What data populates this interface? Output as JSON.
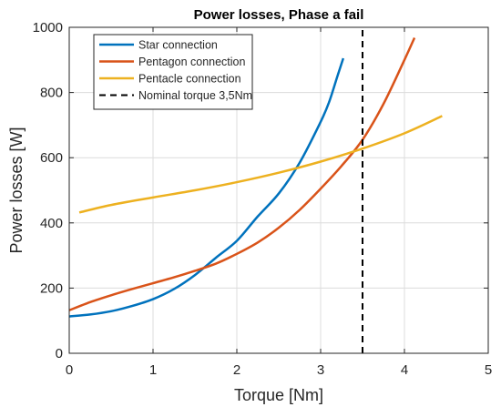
{
  "chart_data": {
    "type": "line",
    "title": "Power losses, Phase a fail",
    "xlabel": "Torque [Nm]",
    "ylabel": "Power losses [W]",
    "xlim": [
      0,
      5
    ],
    "ylim": [
      0,
      1000
    ],
    "xticks": [
      "0",
      "1",
      "2",
      "3",
      "4",
      "5"
    ],
    "yticks": [
      "0",
      "200",
      "400",
      "600",
      "800",
      "1000"
    ],
    "grid": true,
    "legend_position": "top-left",
    "series": [
      {
        "name": "Star connection",
        "color": "#0072BD",
        "style": "solid",
        "x": [
          0.0,
          0.25,
          0.5,
          0.75,
          1.0,
          1.25,
          1.5,
          1.75,
          2.0,
          2.25,
          2.5,
          2.75,
          3.0,
          3.1,
          3.2,
          3.27
        ],
        "y": [
          113,
          119,
          129,
          145,
          166,
          197,
          240,
          293,
          345,
          420,
          490,
          585,
          710,
          770,
          850,
          905
        ]
      },
      {
        "name": "Pentagon connection",
        "color": "#D95319",
        "style": "solid",
        "x": [
          0.0,
          0.25,
          0.5,
          0.75,
          1.0,
          1.25,
          1.5,
          1.75,
          2.0,
          2.25,
          2.5,
          2.75,
          3.0,
          3.25,
          3.5,
          3.75,
          4.0,
          4.12
        ],
        "y": [
          132,
          157,
          178,
          197,
          215,
          233,
          253,
          275,
          305,
          340,
          385,
          440,
          505,
          575,
          655,
          765,
          900,
          968
        ]
      },
      {
        "name": "Pentacle connection",
        "color": "#EDB120",
        "style": "solid",
        "x": [
          0.12,
          0.5,
          1.0,
          1.5,
          2.0,
          2.5,
          3.0,
          3.5,
          4.0,
          4.45
        ],
        "y": [
          432,
          455,
          478,
          500,
          525,
          554,
          588,
          628,
          675,
          728
        ]
      },
      {
        "name": "Nominal torque 3,5Nm",
        "color": "#000000",
        "style": "dashed",
        "x": [
          3.5,
          3.5
        ],
        "y": [
          0,
          1000
        ]
      }
    ]
  }
}
